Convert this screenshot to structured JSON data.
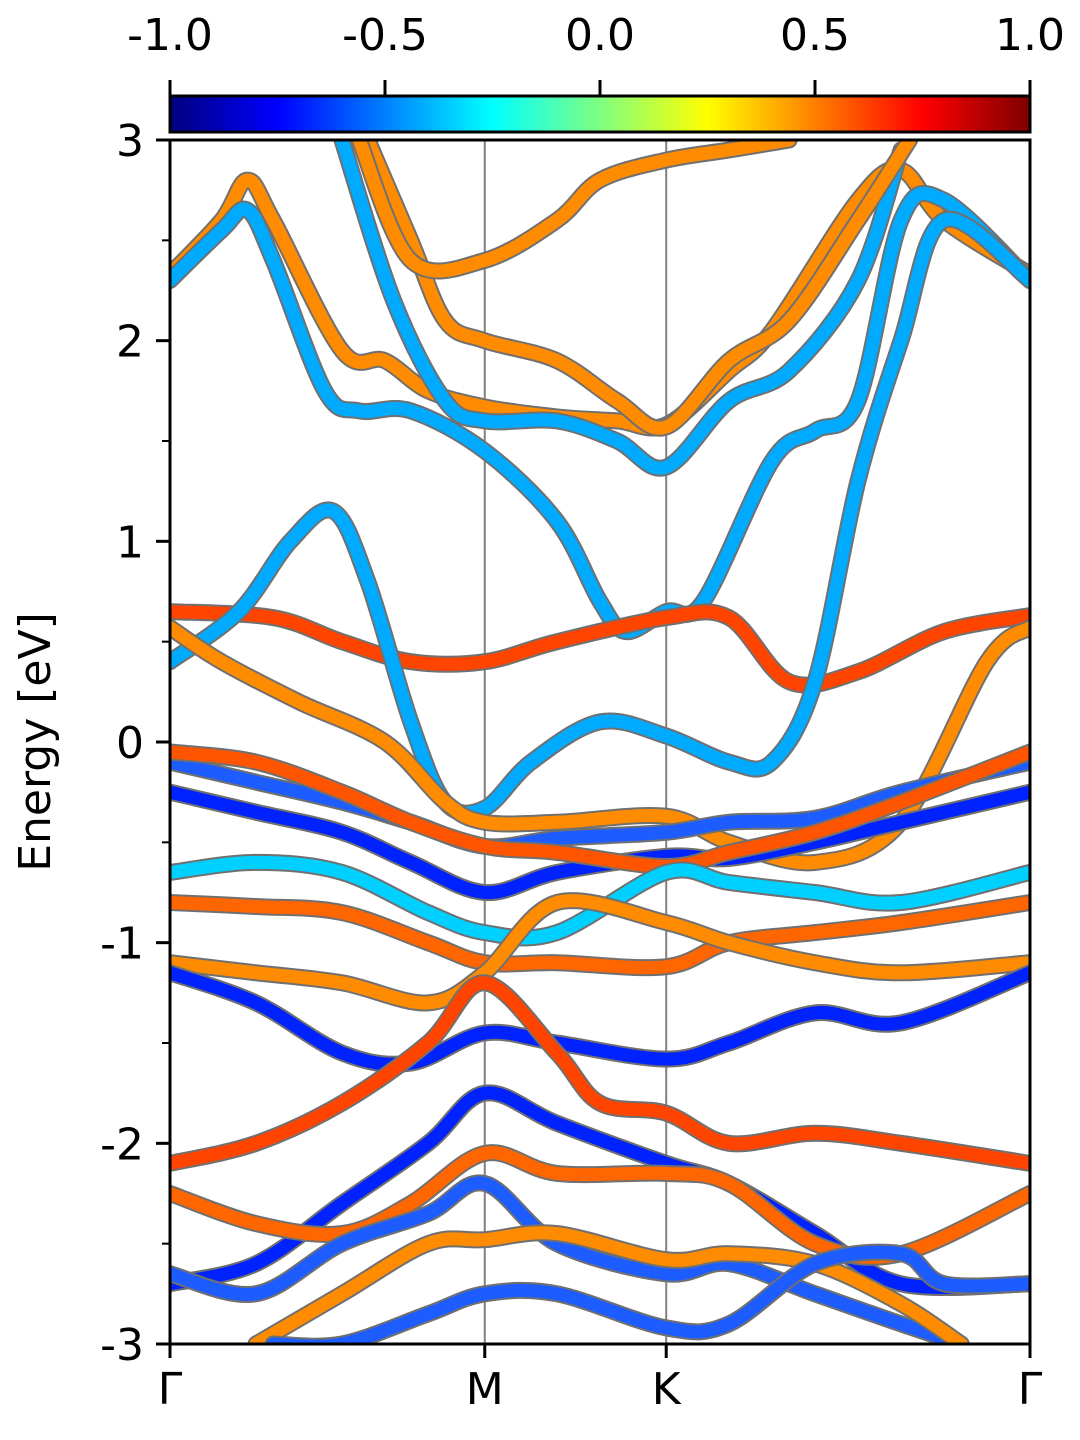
{
  "chart_data": {
    "type": "line",
    "title": "",
    "xlabel": "",
    "ylabel": "Energy [eV]",
    "ylim": [
      -3,
      3
    ],
    "xlim": [
      0,
      1
    ],
    "yticks": [
      -3,
      -2,
      -1,
      0,
      1,
      2,
      3
    ],
    "ytick_labels": [
      "-3",
      "-2",
      "-1",
      "0",
      "1",
      "2",
      "3"
    ],
    "yminor_ticks": [
      -2.5,
      -1.5,
      -0.5,
      0.5,
      1.5,
      2.5
    ],
    "xticks": [
      0.0,
      0.366,
      0.577,
      1.0
    ],
    "xtick_labels": [
      "Γ",
      "M",
      "K",
      "Γ"
    ],
    "high_symmetry_lines": [
      0.366,
      0.577
    ],
    "grid": false,
    "legend": "none",
    "colorbar": {
      "orientation": "horizontal",
      "position": "top",
      "range": [
        -1.0,
        1.0
      ],
      "ticks": [
        -1.0,
        -0.5,
        0.0,
        0.5,
        1.0
      ],
      "tick_labels": [
        "-1.0",
        "-0.5",
        "0.0",
        "0.5",
        "1.0"
      ],
      "colormap": "jet",
      "colors": [
        "#00007f",
        "#0000ff",
        "#007fff",
        "#00ffff",
        "#7fff7f",
        "#ffff00",
        "#ff7f00",
        "#ff0000",
        "#7f0000"
      ]
    },
    "series": [
      {
        "color": "#ff8c00",
        "points": [
          [
            0.0,
            2.33
          ],
          [
            0.06,
            2.6
          ],
          [
            0.09,
            2.8
          ],
          [
            0.12,
            2.6
          ],
          [
            0.2,
            1.95
          ],
          [
            0.25,
            1.9
          ],
          [
            0.3,
            1.75
          ],
          [
            0.366,
            1.67
          ],
          [
            0.45,
            1.62
          ],
          [
            0.52,
            1.6
          ],
          [
            0.577,
            1.58
          ],
          [
            0.65,
            1.85
          ],
          [
            0.7,
            2.05
          ],
          [
            0.8,
            2.7
          ],
          [
            0.85,
            2.85
          ],
          [
            0.9,
            2.6
          ],
          [
            1.0,
            2.33
          ]
        ]
      },
      {
        "color": "#00aaff",
        "points": [
          [
            0.0,
            2.3
          ],
          [
            0.06,
            2.55
          ],
          [
            0.09,
            2.65
          ],
          [
            0.12,
            2.4
          ],
          [
            0.18,
            1.75
          ],
          [
            0.22,
            1.65
          ],
          [
            0.28,
            1.65
          ],
          [
            0.366,
            1.45
          ],
          [
            0.45,
            1.1
          ],
          [
            0.5,
            0.7
          ],
          [
            0.53,
            0.55
          ],
          [
            0.577,
            0.65
          ],
          [
            0.62,
            0.7
          ],
          [
            0.7,
            1.4
          ],
          [
            0.75,
            1.55
          ],
          [
            0.8,
            1.7
          ],
          [
            0.85,
            2.6
          ],
          [
            0.9,
            2.7
          ],
          [
            1.0,
            2.3
          ]
        ]
      },
      {
        "color": "#ff4400",
        "points": [
          [
            0.0,
            0.65
          ],
          [
            0.12,
            0.62
          ],
          [
            0.2,
            0.5
          ],
          [
            0.28,
            0.4
          ],
          [
            0.366,
            0.4
          ],
          [
            0.45,
            0.5
          ],
          [
            0.577,
            0.62
          ],
          [
            0.65,
            0.62
          ],
          [
            0.72,
            0.3
          ],
          [
            0.8,
            0.35
          ],
          [
            0.9,
            0.55
          ],
          [
            1.0,
            0.63
          ]
        ]
      },
      {
        "color": "#00aaff",
        "points": [
          [
            0.0,
            0.4
          ],
          [
            0.08,
            0.65
          ],
          [
            0.14,
            1.0
          ],
          [
            0.19,
            1.15
          ],
          [
            0.23,
            0.8
          ],
          [
            0.28,
            0.1
          ],
          [
            0.32,
            -0.3
          ],
          [
            0.366,
            -0.33
          ],
          [
            0.42,
            -0.1
          ],
          [
            0.5,
            0.1
          ],
          [
            0.577,
            0.03
          ],
          [
            0.65,
            -0.1
          ],
          [
            0.7,
            -0.1
          ],
          [
            0.75,
            0.3
          ],
          [
            0.8,
            1.3
          ],
          [
            0.85,
            2.0
          ],
          [
            0.9,
            2.6
          ],
          [
            1.0,
            2.3
          ]
        ]
      },
      {
        "color": "#ff8c00",
        "points": [
          [
            0.0,
            0.57
          ],
          [
            0.06,
            0.4
          ],
          [
            0.15,
            0.2
          ],
          [
            0.25,
            0.0
          ],
          [
            0.32,
            -0.3
          ],
          [
            0.366,
            -0.4
          ],
          [
            0.45,
            -0.4
          ],
          [
            0.577,
            -0.37
          ],
          [
            0.65,
            -0.5
          ],
          [
            0.75,
            -0.6
          ],
          [
            0.85,
            -0.4
          ],
          [
            0.95,
            0.4
          ],
          [
            1.0,
            0.57
          ]
        ]
      },
      {
        "color": "#00aaff",
        "points": [
          [
            0.2,
            3.0
          ],
          [
            0.26,
            2.2
          ],
          [
            0.32,
            1.7
          ],
          [
            0.366,
            1.6
          ],
          [
            0.45,
            1.6
          ],
          [
            0.52,
            1.5
          ],
          [
            0.577,
            1.37
          ],
          [
            0.65,
            1.7
          ],
          [
            0.72,
            1.85
          ],
          [
            0.8,
            2.3
          ],
          [
            0.85,
            2.95
          ]
        ]
      },
      {
        "color": "#ff8c00",
        "points": [
          [
            0.23,
            3.0
          ],
          [
            0.28,
            2.5
          ],
          [
            0.32,
            2.1
          ],
          [
            0.366,
            2.0
          ],
          [
            0.45,
            1.9
          ],
          [
            0.52,
            1.7
          ],
          [
            0.577,
            1.57
          ],
          [
            0.65,
            1.9
          ],
          [
            0.72,
            2.1
          ],
          [
            0.8,
            2.6
          ],
          [
            0.86,
            3.0
          ]
        ]
      },
      {
        "color": "#ff8c00",
        "points": [
          [
            0.22,
            3.0
          ],
          [
            0.28,
            2.4
          ],
          [
            0.366,
            2.4
          ],
          [
            0.45,
            2.6
          ],
          [
            0.5,
            2.8
          ],
          [
            0.577,
            2.9
          ],
          [
            0.65,
            2.95
          ],
          [
            0.72,
            3.0
          ]
        ]
      },
      {
        "color": "#1d5cff",
        "points": [
          [
            0.0,
            -0.1
          ],
          [
            0.1,
            -0.2
          ],
          [
            0.2,
            -0.3
          ],
          [
            0.28,
            -0.4
          ],
          [
            0.366,
            -0.52
          ],
          [
            0.45,
            -0.48
          ],
          [
            0.577,
            -0.45
          ],
          [
            0.65,
            -0.4
          ],
          [
            0.75,
            -0.38
          ],
          [
            0.85,
            -0.25
          ],
          [
            1.0,
            -0.1
          ]
        ]
      },
      {
        "color": "#0022ff",
        "points": [
          [
            0.0,
            -0.25
          ],
          [
            0.1,
            -0.35
          ],
          [
            0.2,
            -0.45
          ],
          [
            0.28,
            -0.6
          ],
          [
            0.366,
            -0.75
          ],
          [
            0.45,
            -0.65
          ],
          [
            0.577,
            -0.57
          ],
          [
            0.65,
            -0.58
          ],
          [
            0.75,
            -0.5
          ],
          [
            0.85,
            -0.4
          ],
          [
            1.0,
            -0.25
          ]
        ]
      },
      {
        "color": "#ff5500",
        "points": [
          [
            0.0,
            -0.05
          ],
          [
            0.1,
            -0.1
          ],
          [
            0.2,
            -0.25
          ],
          [
            0.28,
            -0.4
          ],
          [
            0.366,
            -0.52
          ],
          [
            0.45,
            -0.55
          ],
          [
            0.577,
            -0.62
          ],
          [
            0.65,
            -0.55
          ],
          [
            0.75,
            -0.45
          ],
          [
            0.85,
            -0.3
          ],
          [
            1.0,
            -0.05
          ]
        ]
      },
      {
        "color": "#00d0ff",
        "points": [
          [
            0.0,
            -0.65
          ],
          [
            0.1,
            -0.6
          ],
          [
            0.2,
            -0.65
          ],
          [
            0.3,
            -0.85
          ],
          [
            0.366,
            -0.95
          ],
          [
            0.45,
            -0.95
          ],
          [
            0.577,
            -0.65
          ],
          [
            0.65,
            -0.7
          ],
          [
            0.75,
            -0.75
          ],
          [
            0.85,
            -0.8
          ],
          [
            1.0,
            -0.65
          ]
        ]
      },
      {
        "color": "#ff6600",
        "points": [
          [
            0.0,
            -0.8
          ],
          [
            0.1,
            -0.82
          ],
          [
            0.2,
            -0.85
          ],
          [
            0.3,
            -1.0
          ],
          [
            0.366,
            -1.1
          ],
          [
            0.45,
            -1.1
          ],
          [
            0.577,
            -1.12
          ],
          [
            0.65,
            -1.0
          ],
          [
            0.75,
            -0.95
          ],
          [
            0.85,
            -0.9
          ],
          [
            1.0,
            -0.8
          ]
        ]
      },
      {
        "color": "#ff8c00",
        "points": [
          [
            0.0,
            -1.1
          ],
          [
            0.1,
            -1.15
          ],
          [
            0.2,
            -1.2
          ],
          [
            0.3,
            -1.3
          ],
          [
            0.366,
            -1.15
          ],
          [
            0.45,
            -0.8
          ],
          [
            0.577,
            -0.9
          ],
          [
            0.65,
            -1.0
          ],
          [
            0.75,
            -1.1
          ],
          [
            0.85,
            -1.15
          ],
          [
            1.0,
            -1.1
          ]
        ]
      },
      {
        "color": "#0022ff",
        "points": [
          [
            0.0,
            -1.15
          ],
          [
            0.1,
            -1.3
          ],
          [
            0.2,
            -1.55
          ],
          [
            0.28,
            -1.6
          ],
          [
            0.366,
            -1.45
          ],
          [
            0.45,
            -1.5
          ],
          [
            0.577,
            -1.58
          ],
          [
            0.65,
            -1.5
          ],
          [
            0.75,
            -1.35
          ],
          [
            0.85,
            -1.4
          ],
          [
            1.0,
            -1.15
          ]
        ]
      },
      {
        "color": "#ff4400",
        "points": [
          [
            0.0,
            -2.1
          ],
          [
            0.1,
            -2.0
          ],
          [
            0.2,
            -1.8
          ],
          [
            0.3,
            -1.5
          ],
          [
            0.366,
            -1.2
          ],
          [
            0.45,
            -1.55
          ],
          [
            0.5,
            -1.8
          ],
          [
            0.577,
            -1.85
          ],
          [
            0.65,
            -2.0
          ],
          [
            0.75,
            -1.95
          ],
          [
            0.85,
            -2.0
          ],
          [
            1.0,
            -2.1
          ]
        ]
      },
      {
        "color": "#0022ff",
        "points": [
          [
            0.0,
            -2.7
          ],
          [
            0.1,
            -2.6
          ],
          [
            0.2,
            -2.3
          ],
          [
            0.3,
            -2.0
          ],
          [
            0.366,
            -1.75
          ],
          [
            0.45,
            -1.9
          ],
          [
            0.577,
            -2.1
          ],
          [
            0.65,
            -2.2
          ],
          [
            0.75,
            -2.45
          ],
          [
            0.85,
            -2.7
          ],
          [
            1.0,
            -2.7
          ]
        ]
      },
      {
        "color": "#ff6600",
        "points": [
          [
            0.0,
            -2.25
          ],
          [
            0.1,
            -2.4
          ],
          [
            0.2,
            -2.45
          ],
          [
            0.28,
            -2.3
          ],
          [
            0.366,
            -2.05
          ],
          [
            0.45,
            -2.15
          ],
          [
            0.577,
            -2.15
          ],
          [
            0.65,
            -2.2
          ],
          [
            0.75,
            -2.5
          ],
          [
            0.85,
            -2.55
          ],
          [
            1.0,
            -2.25
          ]
        ]
      },
      {
        "color": "#1d5cff",
        "points": [
          [
            0.0,
            -2.65
          ],
          [
            0.1,
            -2.75
          ],
          [
            0.2,
            -2.5
          ],
          [
            0.3,
            -2.35
          ],
          [
            0.366,
            -2.2
          ],
          [
            0.45,
            -2.5
          ],
          [
            0.577,
            -2.65
          ],
          [
            0.65,
            -2.6
          ],
          [
            0.75,
            -2.75
          ],
          [
            0.85,
            -2.9
          ],
          [
            0.92,
            -3.0
          ]
        ]
      },
      {
        "color": "#ff8c00",
        "points": [
          [
            0.1,
            -3.0
          ],
          [
            0.2,
            -2.75
          ],
          [
            0.3,
            -2.5
          ],
          [
            0.366,
            -2.48
          ],
          [
            0.45,
            -2.45
          ],
          [
            0.577,
            -2.58
          ],
          [
            0.65,
            -2.55
          ],
          [
            0.75,
            -2.6
          ],
          [
            0.85,
            -2.8
          ],
          [
            0.92,
            -3.0
          ]
        ]
      },
      {
        "color": "#1d5cff",
        "points": [
          [
            0.12,
            -3.0
          ],
          [
            0.2,
            -3.0
          ],
          [
            0.3,
            -2.85
          ],
          [
            0.366,
            -2.75
          ],
          [
            0.45,
            -2.75
          ],
          [
            0.577,
            -2.92
          ],
          [
            0.65,
            -2.9
          ],
          [
            0.75,
            -2.6
          ],
          [
            0.85,
            -2.55
          ],
          [
            0.9,
            -2.7
          ],
          [
            1.0,
            -2.7
          ]
        ]
      }
    ]
  }
}
